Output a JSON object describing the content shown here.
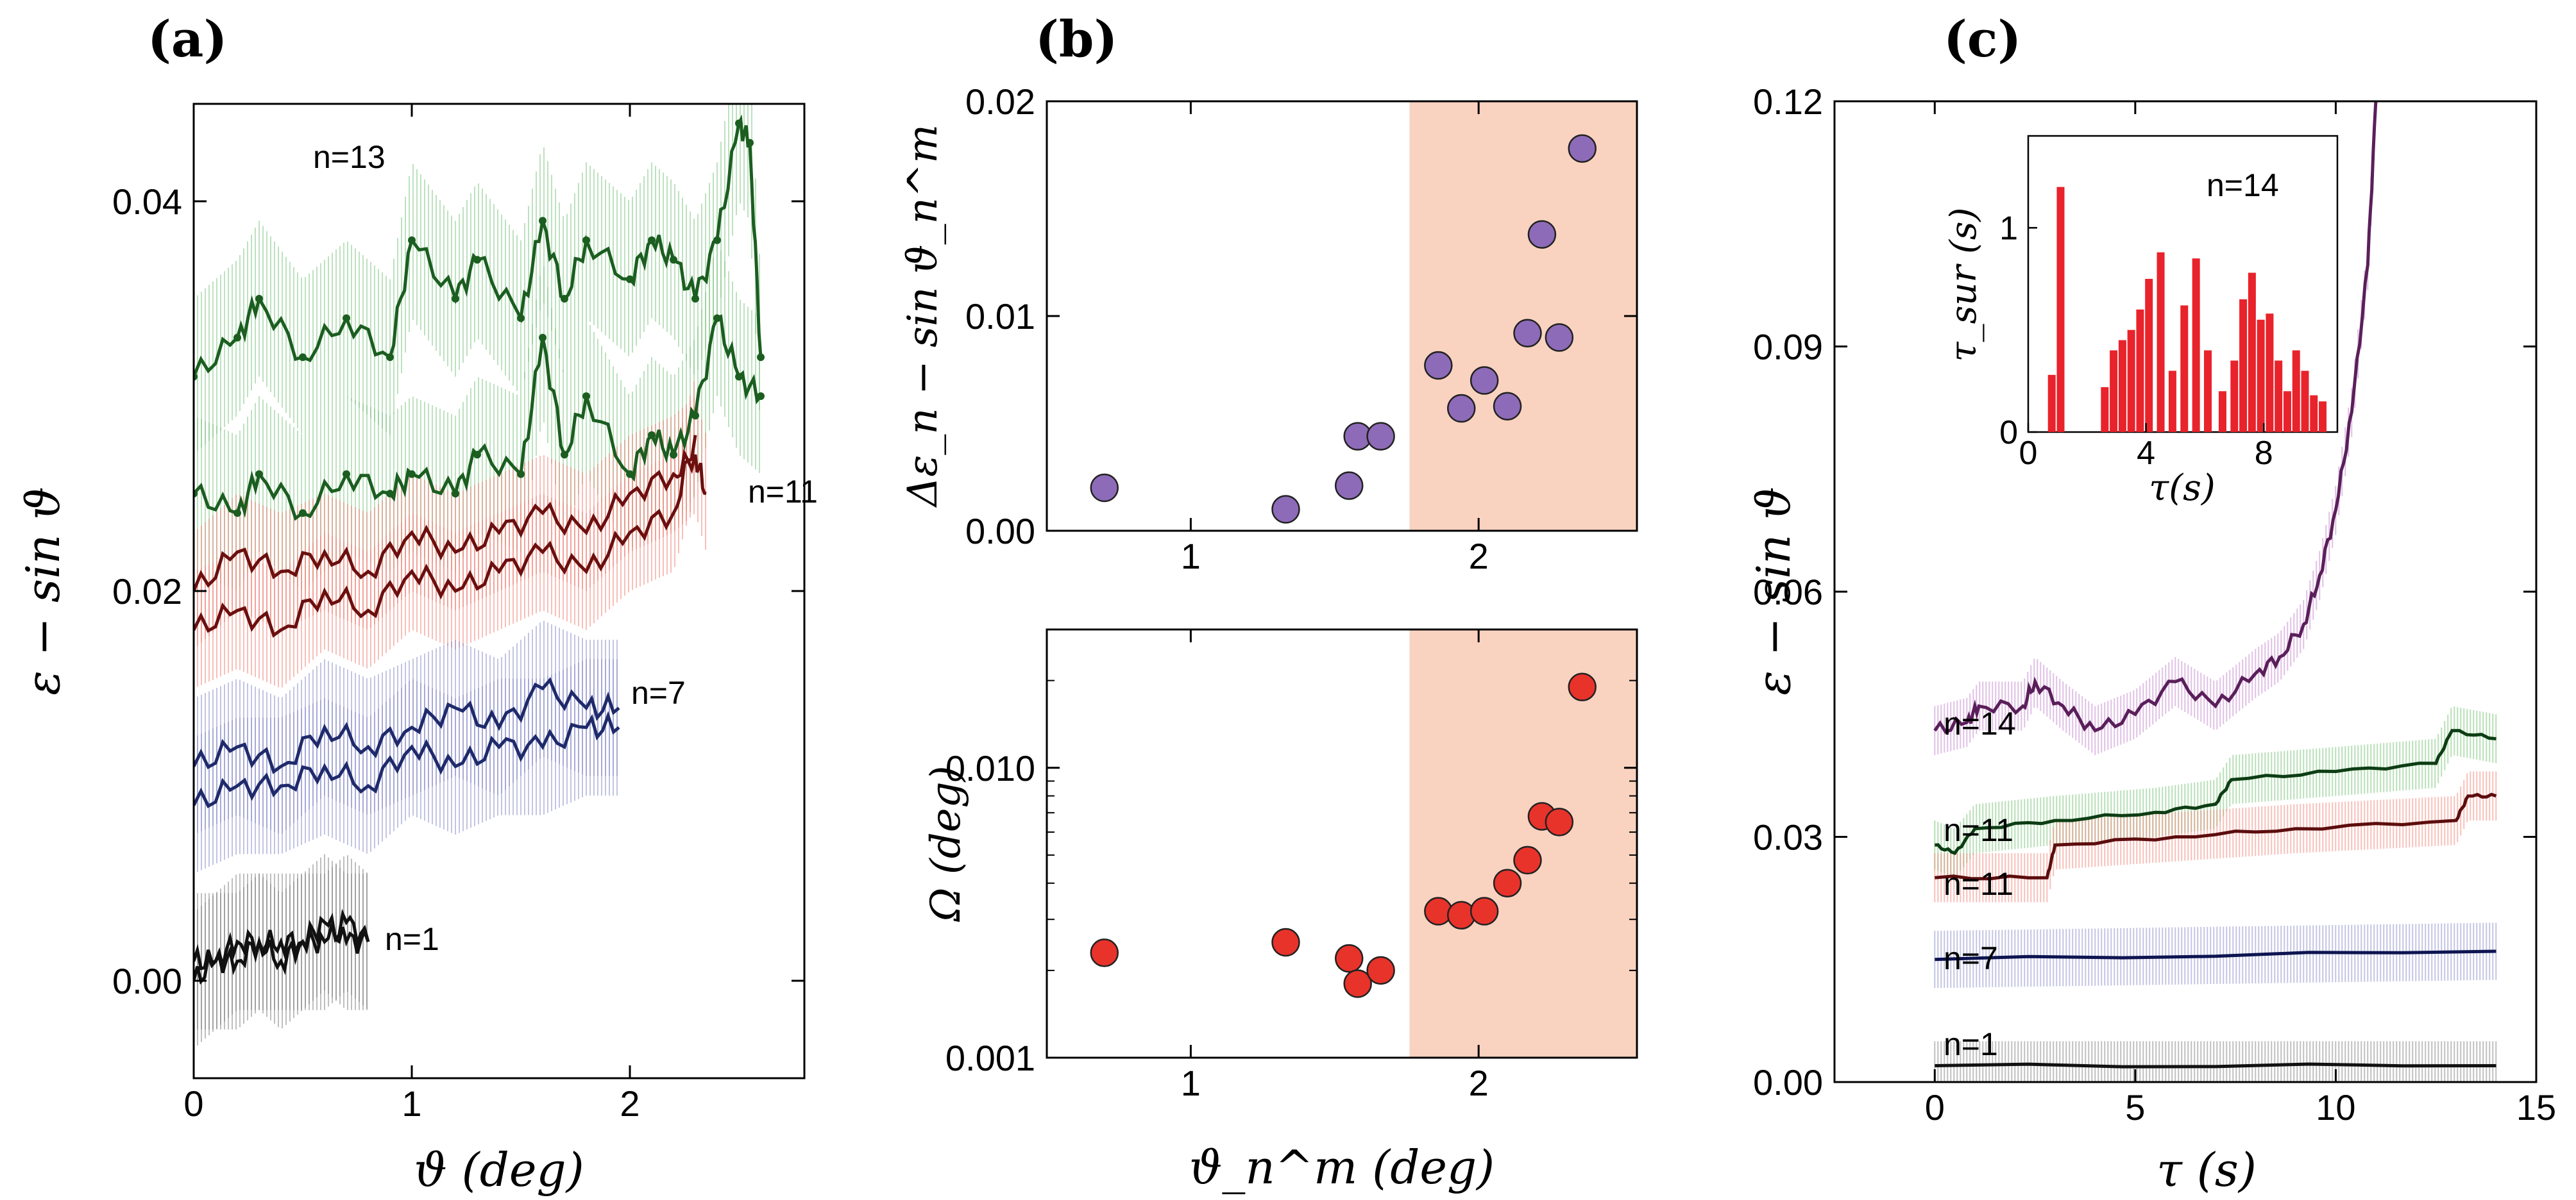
{
  "chart_data": [
    {
      "panel": "a",
      "type": "line",
      "panel_label": "(a)",
      "xlabel": "ϑ (deg)",
      "ylabel": "ε − sin ϑ",
      "xlim": [
        0,
        2.8
      ],
      "ylim": [
        -0.005,
        0.045
      ],
      "x_ticks": [
        "0",
        "1",
        "2"
      ],
      "y_ticks": [
        "0.00",
        "0.02",
        "0.04"
      ],
      "series": [
        {
          "name": "n=13",
          "color": "#1b5e20",
          "band_color": "#86c98a",
          "x": [
            0,
            0.2,
            0.3,
            0.5,
            0.7,
            0.9,
            1.0,
            1.2,
            1.3,
            1.5,
            1.6,
            1.7,
            1.8,
            2.0,
            2.1,
            2.2,
            2.3,
            2.4,
            2.5,
            2.55,
            2.6
          ],
          "y": [
            0.031,
            0.033,
            0.035,
            0.032,
            0.034,
            0.032,
            0.038,
            0.035,
            0.037,
            0.034,
            0.039,
            0.035,
            0.038,
            0.036,
            0.038,
            0.037,
            0.035,
            0.038,
            0.044,
            0.043,
            0.032
          ]
        },
        {
          "name": "n=13",
          "color": "#1b5e20",
          "band_color": "#86c98a",
          "x": [
            0,
            0.2,
            0.3,
            0.5,
            0.7,
            0.9,
            1.0,
            1.2,
            1.3,
            1.5,
            1.6,
            1.7,
            1.8,
            2.0,
            2.1,
            2.2,
            2.3,
            2.4,
            2.5,
            2.6
          ],
          "y": [
            0.025,
            0.024,
            0.026,
            0.024,
            0.026,
            0.025,
            0.026,
            0.025,
            0.027,
            0.026,
            0.033,
            0.027,
            0.03,
            0.026,
            0.028,
            0.027,
            0.029,
            0.034,
            0.031,
            0.03
          ]
        },
        {
          "name": "n=11",
          "color": "#6b0f0f",
          "band_color": "#f08a80",
          "x": [
            0,
            0.2,
            0.4,
            0.6,
            0.8,
            1.0,
            1.2,
            1.4,
            1.6,
            1.8,
            2.0,
            2.2,
            2.3,
            2.35
          ],
          "y": [
            0.02,
            0.022,
            0.021,
            0.022,
            0.021,
            0.023,
            0.022,
            0.023,
            0.024,
            0.023,
            0.025,
            0.026,
            0.027,
            0.025
          ]
        },
        {
          "name": "n=11",
          "color": "#6b0f0f",
          "band_color": "#f08a80",
          "x": [
            0,
            0.2,
            0.4,
            0.6,
            0.8,
            1.0,
            1.2,
            1.4,
            1.6,
            1.8,
            2.0,
            2.2,
            2.3
          ],
          "y": [
            0.018,
            0.019,
            0.018,
            0.02,
            0.019,
            0.021,
            0.02,
            0.021,
            0.022,
            0.021,
            0.023,
            0.024,
            0.028
          ]
        },
        {
          "name": "n=7",
          "color": "#1f2a6b",
          "band_color": "#8f93cc",
          "x": [
            0,
            0.2,
            0.4,
            0.6,
            0.8,
            1.0,
            1.2,
            1.4,
            1.6,
            1.8,
            1.95
          ],
          "y": [
            0.011,
            0.012,
            0.011,
            0.013,
            0.012,
            0.013,
            0.014,
            0.013,
            0.015,
            0.014,
            0.014
          ]
        },
        {
          "name": "n=7",
          "color": "#1f2a6b",
          "band_color": "#8f93cc",
          "x": [
            0,
            0.2,
            0.4,
            0.6,
            0.8,
            1.0,
            1.2,
            1.4,
            1.6,
            1.8,
            1.95
          ],
          "y": [
            0.009,
            0.01,
            0.01,
            0.011,
            0.01,
            0.012,
            0.011,
            0.012,
            0.012,
            0.013,
            0.013
          ]
        },
        {
          "name": "n=1",
          "color": "#111111",
          "band_color": "#888888",
          "x": [
            0,
            0.1,
            0.2,
            0.3,
            0.4,
            0.5,
            0.6,
            0.7,
            0.8
          ],
          "y": [
            0.001,
            0.001,
            0.002,
            0.002,
            0.002,
            0.002,
            0.003,
            0.002,
            0.002
          ]
        },
        {
          "name": "n=1",
          "color": "#111111",
          "band_color": "#888888",
          "x": [
            0,
            0.1,
            0.2,
            0.3,
            0.4,
            0.5,
            0.6,
            0.7,
            0.8
          ],
          "y": [
            0.0,
            0.001,
            0.001,
            0.002,
            0.001,
            0.002,
            0.002,
            0.003,
            0.002
          ]
        }
      ],
      "annotations": [
        "n=13",
        "n=11",
        "n=7",
        "n=1"
      ]
    },
    {
      "panel": "b_top",
      "type": "scatter",
      "panel_label": "(b)",
      "xlabel": "",
      "ylabel": "Δε_n − sin ϑ_n^m",
      "xlim": [
        0.5,
        2.55
      ],
      "ylim": [
        0.0,
        0.02
      ],
      "x_ticks": [
        "1",
        "2"
      ],
      "y_ticks": [
        "0.00",
        "0.01",
        "0.02"
      ],
      "shaded_region": [
        1.76,
        2.55
      ],
      "color": "#8e6bb8",
      "x": [
        0.7,
        1.33,
        1.55,
        1.58,
        1.66,
        1.86,
        1.94,
        2.02,
        2.1,
        2.17,
        2.22,
        2.28,
        2.36
      ],
      "y": [
        0.002,
        0.001,
        0.0021,
        0.0044,
        0.0044,
        0.0077,
        0.0057,
        0.007,
        0.0058,
        0.0092,
        0.0138,
        0.009,
        0.0178
      ]
    },
    {
      "panel": "b_bottom",
      "type": "scatter",
      "panel_label": "",
      "xlabel": "ϑ_n^m (deg)",
      "ylabel": "Ω (deg)",
      "xlim": [
        0.5,
        2.55
      ],
      "ylim": [
        0.001,
        0.03
      ],
      "yscale": "log",
      "x_ticks": [
        "1",
        "2"
      ],
      "y_ticks": [
        "0.001",
        "0.010"
      ],
      "shaded_region": [
        1.76,
        2.55
      ],
      "color": "#e8332b",
      "x": [
        0.7,
        1.33,
        1.55,
        1.58,
        1.66,
        1.86,
        1.94,
        2.02,
        2.1,
        2.17,
        2.22,
        2.28,
        2.36
      ],
      "y": [
        0.0023,
        0.0025,
        0.0022,
        0.0018,
        0.002,
        0.0032,
        0.0031,
        0.0032,
        0.004,
        0.0048,
        0.0068,
        0.0065,
        0.019
      ]
    },
    {
      "panel": "c",
      "type": "line",
      "panel_label": "(c)",
      "xlabel": "τ (s)",
      "ylabel": "ε − sin ϑ",
      "xlim": [
        -2.5,
        15
      ],
      "ylim": [
        0.0,
        0.12
      ],
      "x_ticks": [
        "0",
        "5",
        "10",
        "15"
      ],
      "y_ticks": [
        "0.00",
        "0.03",
        "0.06",
        "0.09",
        "0.12"
      ],
      "series": [
        {
          "name": "n=14",
          "color": "#5a1f5a",
          "band_color": "#c78ad0",
          "x": [
            0,
            0.8,
            1.1,
            2.2,
            2.5,
            3.2,
            4.0,
            5.0,
            6.0,
            7.0,
            8.0,
            8.6,
            9.2,
            9.6,
            10.0,
            10.4,
            10.8,
            11.0
          ],
          "y": [
            0.043,
            0.044,
            0.046,
            0.046,
            0.049,
            0.046,
            0.043,
            0.045,
            0.049,
            0.046,
            0.05,
            0.052,
            0.056,
            0.062,
            0.07,
            0.082,
            0.1,
            0.12
          ]
        },
        {
          "name": "n=11",
          "color": "#0d3d14",
          "band_color": "#7cc47a",
          "x": [
            0,
            0.5,
            1.0,
            3.0,
            5.5,
            7.0,
            7.4,
            10.0,
            12.5,
            12.9,
            14.0
          ],
          "y": [
            0.029,
            0.028,
            0.031,
            0.032,
            0.033,
            0.034,
            0.037,
            0.038,
            0.039,
            0.043,
            0.042
          ]
        },
        {
          "name": "n=11",
          "color": "#5c0d0d",
          "band_color": "#f08a80",
          "x": [
            0,
            2.8,
            3.0,
            6.0,
            9.0,
            13.0,
            13.3,
            14.0
          ],
          "y": [
            0.025,
            0.025,
            0.029,
            0.03,
            0.031,
            0.032,
            0.035,
            0.035
          ]
        },
        {
          "name": "n=7",
          "color": "#0d1450",
          "band_color": "#8f93cc",
          "x": [
            0,
            14.0
          ],
          "y": [
            0.015,
            0.016
          ]
        },
        {
          "name": "n=1",
          "color": "#111111",
          "band_color": "#8a8a8a",
          "x": [
            0,
            14.0
          ],
          "y": [
            0.002,
            0.002
          ]
        }
      ],
      "annotations": [
        "n=14",
        "n=11",
        "n=11",
        "n=7",
        "n=1"
      ],
      "inset": {
        "type": "bar",
        "xlabel": "τ(s)",
        "ylabel": "τ_sur (s)",
        "label": "n=14",
        "xlim": [
          0,
          10.5
        ],
        "ylim": [
          0,
          1.45
        ],
        "x_ticks": [
          "0",
          "4",
          "8"
        ],
        "y_ticks": [
          "0",
          "1"
        ],
        "color": "#e8232b",
        "x": [
          0.8,
          1.1,
          2.6,
          2.9,
          3.2,
          3.5,
          3.8,
          4.1,
          4.5,
          4.9,
          5.3,
          5.7,
          6.1,
          6.6,
          7.0,
          7.3,
          7.6,
          7.9,
          8.2,
          8.5,
          8.8,
          9.1,
          9.4,
          9.7,
          10.0
        ],
        "values": [
          0.28,
          1.2,
          0.22,
          0.4,
          0.45,
          0.5,
          0.6,
          0.75,
          0.88,
          0.3,
          0.62,
          0.85,
          0.4,
          0.2,
          0.35,
          0.65,
          0.78,
          0.55,
          0.58,
          0.35,
          0.2,
          0.4,
          0.3,
          0.18,
          0.15
        ]
      }
    }
  ]
}
